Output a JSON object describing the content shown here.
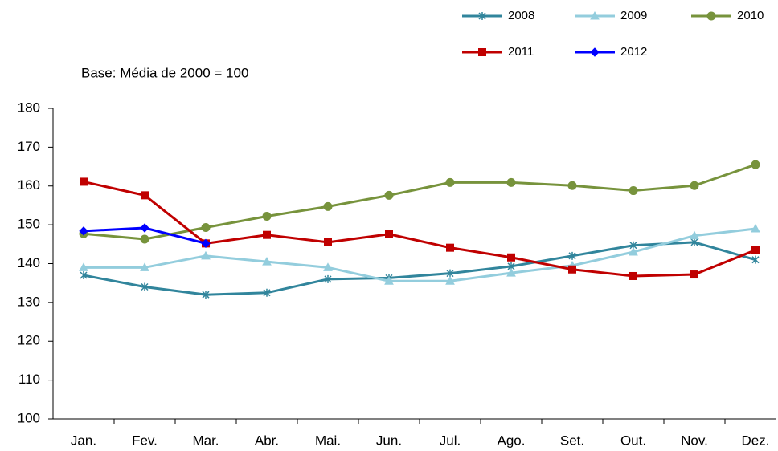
{
  "chart_data": {
    "type": "line",
    "subtitle": "Base: Média de 2000 = 100",
    "categories": [
      "Jan.",
      "Fev.",
      "Mar.",
      "Abr.",
      "Mai.",
      "Jun.",
      "Jul.",
      "Ago.",
      "Set.",
      "Out.",
      "Nov.",
      "Dez."
    ],
    "series": [
      {
        "name": "2008",
        "color": "#31859c",
        "marker": "x",
        "values": [
          137,
          134,
          132,
          132.5,
          136,
          136.3,
          137.5,
          139.3,
          142,
          144.7,
          145.5,
          141
        ]
      },
      {
        "name": "2009",
        "color": "#93cddd",
        "marker": "triangle",
        "values": [
          139,
          139,
          142,
          140.5,
          139,
          135.5,
          135.5,
          137.6,
          139.5,
          143,
          147.2,
          149
        ]
      },
      {
        "name": "2010",
        "color": "#77933c",
        "marker": "circle",
        "values": [
          147.7,
          146.3,
          149.3,
          152.2,
          154.7,
          157.6,
          160.9,
          160.9,
          160.1,
          158.8,
          160.1,
          165.5
        ]
      },
      {
        "name": "2011",
        "color": "#c00000",
        "marker": "square",
        "values": [
          161.1,
          157.6,
          145.2,
          147.4,
          145.5,
          147.6,
          144.1,
          141.6,
          138.5,
          136.8,
          137.2,
          143.5
        ]
      },
      {
        "name": "2012",
        "color": "#0000ff",
        "marker": "diamond",
        "values": [
          148.4,
          149.2,
          145.2,
          null,
          null,
          null,
          null,
          null,
          null,
          null,
          null,
          null
        ]
      }
    ],
    "ylim": [
      100,
      180
    ],
    "yticks": [
      100,
      110,
      120,
      130,
      140,
      150,
      160,
      170,
      180
    ],
    "grid": false
  }
}
